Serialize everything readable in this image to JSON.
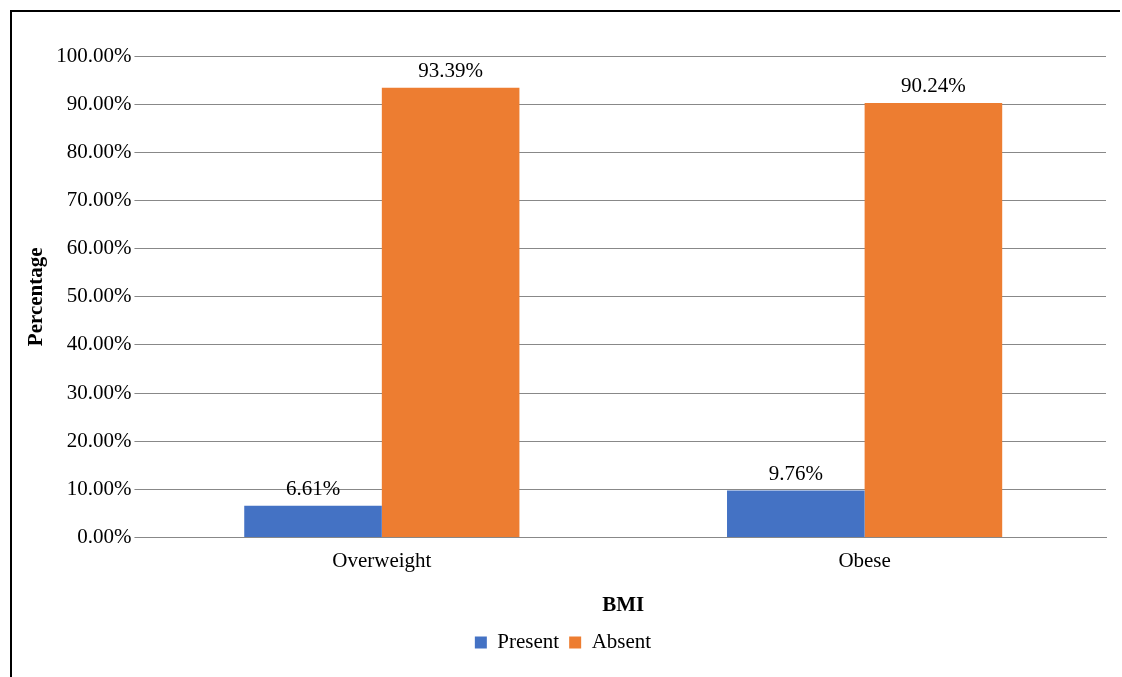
{
  "chart_data": {
    "type": "bar",
    "xlabel": "BMI",
    "ylabel": "Percentage",
    "categories": [
      "Overweight",
      "Obese"
    ],
    "series": [
      {
        "name": "Present",
        "color": "#4472c4",
        "values": [
          6.61,
          9.76
        ],
        "value_labels": [
          "6.61%",
          "9.76%"
        ]
      },
      {
        "name": "Absent",
        "color": "#ed7d31",
        "values": [
          93.39,
          90.24
        ],
        "value_labels": [
          "93.39%",
          "90.24%"
        ]
      }
    ],
    "ylim": [
      0,
      100
    ],
    "yticks": [
      {
        "value": 0,
        "label": "0.00%"
      },
      {
        "value": 10,
        "label": "10.00%"
      },
      {
        "value": 20,
        "label": "20.00%"
      },
      {
        "value": 30,
        "label": "30.00%"
      },
      {
        "value": 40,
        "label": "40.00%"
      },
      {
        "value": 50,
        "label": "50.00%"
      },
      {
        "value": 60,
        "label": "60.00%"
      },
      {
        "value": 70,
        "label": "70.00%"
      },
      {
        "value": 80,
        "label": "80.00%"
      },
      {
        "value": 90,
        "label": "90.00%"
      },
      {
        "value": 100,
        "label": "100.00%"
      }
    ],
    "grid": "y",
    "legend": "bottom"
  }
}
